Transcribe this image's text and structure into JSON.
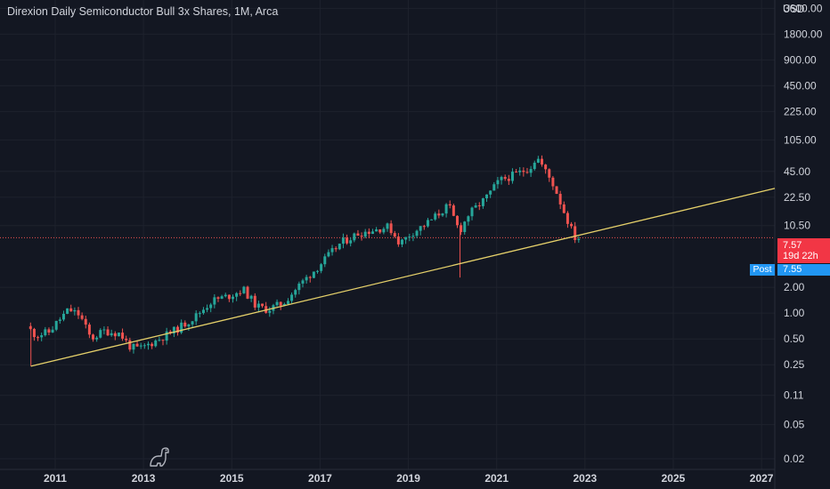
{
  "title": "Direxion Daily Semiconductor Bull 3x Shares, 1M, Arca",
  "currency": "USD",
  "last_price": "7.57",
  "countdown": "19d 22h",
  "post_label": "Post",
  "post_price": "7.55",
  "colors": {
    "background": "#131722",
    "grid": "#1e222d",
    "up": "#26a69a",
    "down": "#ef5350",
    "trendline": "#e5d06a",
    "price_line": "#ef5350",
    "text": "#d1d4dc",
    "post": "#2196f3"
  },
  "chart_data": {
    "type": "candlestick",
    "interval": "1M",
    "y_scale": "log",
    "ylim": [
      0.015,
      4500
    ],
    "xlim": [
      2009.75,
      2027.3
    ],
    "y_ticks": [
      "3600.00",
      "1800.00",
      "900.00",
      "450.00",
      "225.00",
      "105.00",
      "45.00",
      "22.50",
      "10.50",
      "2.00",
      "1.00",
      "0.50",
      "0.25",
      "0.11",
      "0.05",
      "0.02"
    ],
    "x_ticks": [
      "2011",
      "2013",
      "2015",
      "2017",
      "2019",
      "2021",
      "2023",
      "2025",
      "2027"
    ],
    "trendline": {
      "start": [
        2010.45,
        0.24
      ],
      "end": [
        2027.3,
        28.5
      ]
    },
    "current_price": 7.57,
    "path": [
      [
        2010.4,
        0.7
      ],
      [
        2010.6,
        0.55
      ],
      [
        2010.9,
        0.6
      ],
      [
        2011.1,
        0.8
      ],
      [
        2011.35,
        1.1
      ],
      [
        2011.6,
        0.95
      ],
      [
        2011.85,
        0.5
      ],
      [
        2012.15,
        0.62
      ],
      [
        2012.5,
        0.58
      ],
      [
        2012.75,
        0.4
      ],
      [
        2012.95,
        0.38
      ],
      [
        2013.4,
        0.5
      ],
      [
        2013.8,
        0.65
      ],
      [
        2014.2,
        0.9
      ],
      [
        2014.6,
        1.4
      ],
      [
        2015.0,
        1.6
      ],
      [
        2015.3,
        1.9
      ],
      [
        2015.6,
        1.2
      ],
      [
        2015.85,
        1.1
      ],
      [
        2016.2,
        1.3
      ],
      [
        2016.6,
        2.2
      ],
      [
        2017.0,
        3.5
      ],
      [
        2017.5,
        6.5
      ],
      [
        2017.9,
        8.5
      ],
      [
        2018.3,
        9.5
      ],
      [
        2018.6,
        10.2
      ],
      [
        2018.85,
        6.5
      ],
      [
        2019.1,
        8.5
      ],
      [
        2019.5,
        11.5
      ],
      [
        2019.95,
        18
      ],
      [
        2020.2,
        9
      ],
      [
        2020.4,
        14
      ],
      [
        2020.8,
        22
      ],
      [
        2021.1,
        35
      ],
      [
        2021.5,
        42
      ],
      [
        2021.8,
        50
      ],
      [
        2021.95,
        67
      ],
      [
        2022.15,
        45
      ],
      [
        2022.35,
        30
      ],
      [
        2022.55,
        16
      ],
      [
        2022.75,
        9
      ],
      [
        2022.82,
        7.57
      ]
    ]
  }
}
